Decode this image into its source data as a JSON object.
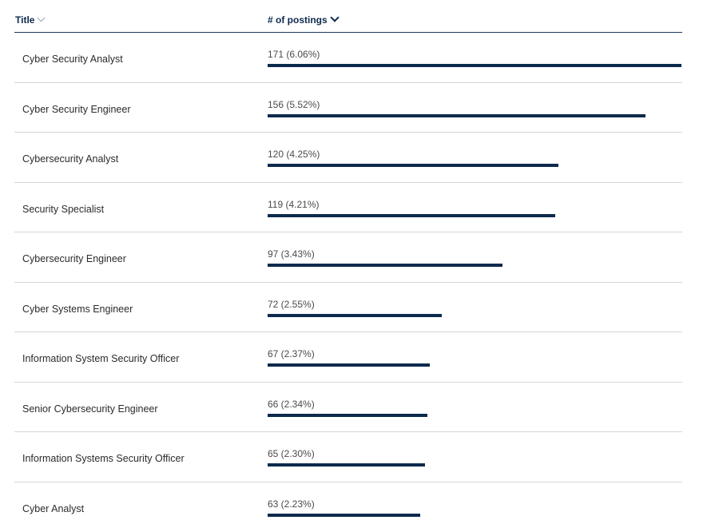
{
  "header": {
    "title_label": "Title",
    "count_label": "# of postings",
    "title_icon": "chevron-down-icon",
    "count_icon": "chevron-down-icon"
  },
  "colors": {
    "bar": "#0d2a4d",
    "header_text": "#0d2a4d",
    "divider": "#d6d6d6"
  },
  "rows": [
    {
      "title": "Cyber Security Analyst",
      "count": 171,
      "label": "171 (6.06%)"
    },
    {
      "title": "Cyber Security Engineer",
      "count": 156,
      "label": "156 (5.52%)"
    },
    {
      "title": "Cybersecurity Analyst",
      "count": 120,
      "label": "120 (4.25%)"
    },
    {
      "title": "Security Specialist",
      "count": 119,
      "label": "119 (4.21%)"
    },
    {
      "title": "Cybersecurity Engineer",
      "count": 97,
      "label": "97 (3.43%)"
    },
    {
      "title": "Cyber Systems Engineer",
      "count": 72,
      "label": "72 (2.55%)"
    },
    {
      "title": "Information System Security Officer",
      "count": 67,
      "label": "67 (2.37%)"
    },
    {
      "title": "Senior Cybersecurity Engineer",
      "count": 66,
      "label": "66 (2.34%)"
    },
    {
      "title": "Information Systems Security Officer",
      "count": 65,
      "label": "65 (2.30%)"
    },
    {
      "title": "Cyber Analyst",
      "count": 63,
      "label": "63 (2.23%)"
    }
  ]
}
